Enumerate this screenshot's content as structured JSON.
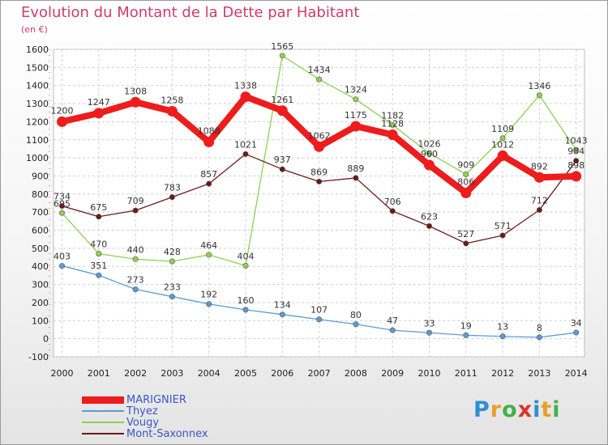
{
  "header": {
    "title": "Evolution du Montant de la Dette par Habitant",
    "unit": "(en €)"
  },
  "brand": {
    "text": "Proxiti"
  },
  "chart_data": {
    "type": "line",
    "title": "Evolution du Montant de la Dette par Habitant",
    "ylabel": "(en €)",
    "xlabel": "",
    "ylim": [
      -100,
      1600
    ],
    "yticks": [
      -100,
      0,
      100,
      200,
      300,
      400,
      500,
      600,
      700,
      800,
      900,
      1000,
      1100,
      1200,
      1300,
      1400,
      1500,
      1600
    ],
    "x": [
      "2000",
      "2001",
      "2002",
      "2003",
      "2004",
      "2005",
      "2006",
      "2007",
      "2008",
      "2009",
      "2010",
      "2011",
      "2012",
      "2013",
      "2014"
    ],
    "grid": true,
    "legend_position": "bottom-left",
    "series": [
      {
        "name": "Thyez",
        "color": "#5b9bd5",
        "values": [
          403,
          351,
          273,
          233,
          192,
          160,
          134,
          107,
          80,
          47,
          33,
          19,
          13,
          8,
          34
        ],
        "labels": [
          "403",
          "351",
          "273",
          "233",
          "192",
          "160",
          "134",
          "107",
          "80",
          "47",
          "33",
          "19",
          "13",
          "8",
          "34"
        ]
      },
      {
        "name": "Vougy",
        "color": "#8fd14f",
        "values": [
          695,
          470,
          440,
          428,
          464,
          404,
          1565,
          1434,
          1324,
          1182,
          1026,
          909,
          1109,
          1346,
          1043
        ],
        "labels": [
          "695",
          "470",
          "440",
          "428",
          "464",
          "404",
          "1565",
          "1434",
          "1324",
          "1182",
          "1026",
          "909",
          "1109",
          "1346",
          "1043"
        ]
      },
      {
        "name": "Mont-Saxonnex",
        "color": "#6b1a1a",
        "values": [
          734,
          675,
          709,
          783,
          857,
          1021,
          937,
          869,
          889,
          706,
          623,
          527,
          571,
          712,
          984
        ],
        "labels": [
          "734",
          "675",
          "709",
          "783",
          "857",
          "1021",
          "937",
          "869",
          "889",
          "706",
          "623",
          "527",
          "571",
          "712",
          "984"
        ]
      },
      {
        "name": "MARIGNIER",
        "color": "#ee1c1c",
        "values": [
          1200,
          1247,
          1308,
          1258,
          1088,
          1338,
          1261,
          1062,
          1175,
          1128,
          960,
          806,
          1012,
          892,
          898
        ],
        "labels": [
          "1200",
          "1247",
          "1308",
          "1258",
          "1088",
          "1338",
          "1261",
          "1062",
          "1175",
          "1128",
          "960",
          "806",
          "1012",
          "892",
          "898"
        ]
      }
    ]
  },
  "legend": {
    "items": [
      {
        "label": "MARIGNIER",
        "color": "#ee1c1c",
        "text_color": "#3b55c8"
      },
      {
        "label": "Thyez",
        "color": "#5b9bd5",
        "text_color": "#3b55c8"
      },
      {
        "label": "Vougy",
        "color": "#8fd14f",
        "text_color": "#3b55c8"
      },
      {
        "label": "Mont-Saxonnex",
        "color": "#6b1a1a",
        "text_color": "#3b55c8"
      }
    ]
  }
}
